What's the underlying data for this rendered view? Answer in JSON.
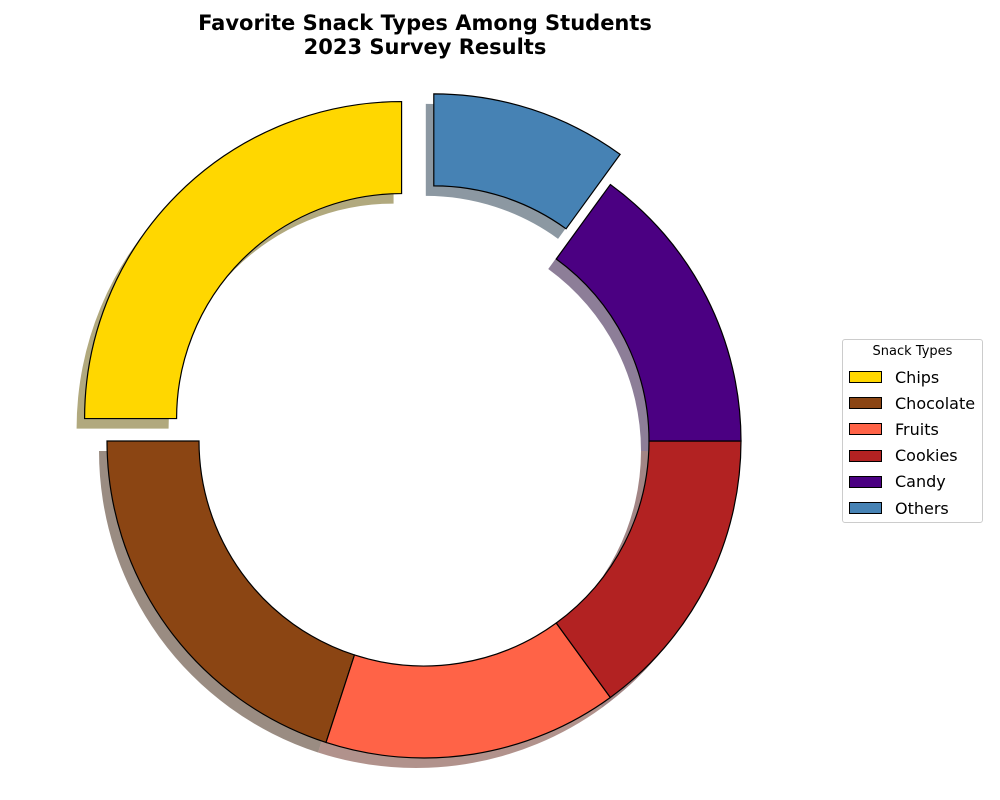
{
  "chart_data": {
    "type": "pie",
    "style": "donut",
    "title": "Favorite Snack Types Among Students\n2023 Survey Results",
    "categories": [
      "Chips",
      "Chocolate",
      "Fruits",
      "Cookies",
      "Candy",
      "Others"
    ],
    "values": [
      25,
      20,
      15,
      15,
      15,
      10
    ],
    "unit": "%",
    "colors": [
      "#FFD700",
      "#8B4513",
      "#FF6347",
      "#B22222",
      "#4B0082",
      "#4682B4"
    ],
    "exploded": [
      "Chips",
      "Others"
    ],
    "start_angle_deg": 90,
    "direction": "counterclockwise",
    "shadow": true,
    "legend": {
      "title": "Snack Types",
      "placement": "right"
    }
  }
}
